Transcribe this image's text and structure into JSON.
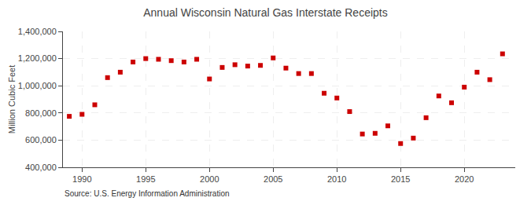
{
  "chart_data": {
    "type": "scatter",
    "title": "Annual Wisconsin Natural Gas Interstate Receipts",
    "ylabel": "Million Cubic Feet",
    "annotations": [
      "Source: U.S. Energy Information Administration"
    ],
    "x": [
      1989,
      1990,
      1991,
      1992,
      1993,
      1994,
      1995,
      1996,
      1997,
      1998,
      1999,
      2000,
      2001,
      2002,
      2003,
      2004,
      2005,
      2006,
      2007,
      2008,
      2009,
      2010,
      2011,
      2012,
      2013,
      2014,
      2015,
      2016,
      2017,
      2018,
      2019,
      2020,
      2021,
      2022,
      2023
    ],
    "values": [
      775000,
      790000,
      860000,
      1060000,
      1100000,
      1175000,
      1200000,
      1195000,
      1185000,
      1175000,
      1195000,
      1050000,
      1135000,
      1155000,
      1145000,
      1150000,
      1205000,
      1130000,
      1090000,
      1090000,
      945000,
      910000,
      810000,
      645000,
      650000,
      705000,
      575000,
      615000,
      765000,
      925000,
      875000,
      990000,
      1100000,
      1045000,
      1235000
    ],
    "color": "#cc0000",
    "marker": "square",
    "xlim": [
      1988.5,
      2024
    ],
    "ylim": [
      400000,
      1400000
    ],
    "xticks": [
      1990,
      1995,
      2000,
      2005,
      2010,
      2015,
      2020
    ],
    "yticks": [
      {
        "value": 400000,
        "label": "400,000"
      },
      {
        "value": 600000,
        "label": "600,000"
      },
      {
        "value": 800000,
        "label": "800,000"
      },
      {
        "value": 1000000,
        "label": "1,000,000"
      },
      {
        "value": 1200000,
        "label": "1,200,000"
      },
      {
        "value": 1400000,
        "label": "1,400,000"
      }
    ],
    "grid": true
  }
}
